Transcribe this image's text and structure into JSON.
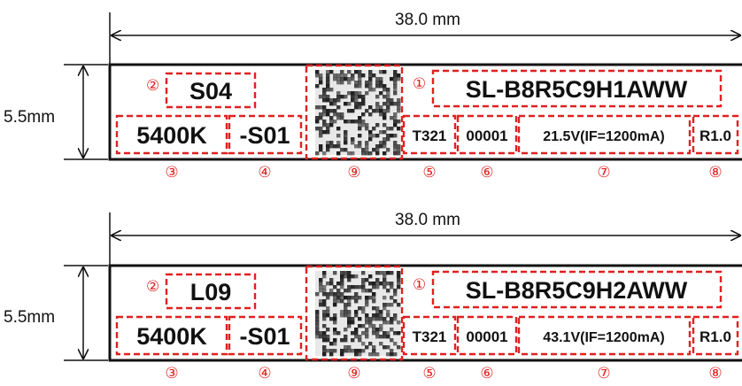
{
  "colors": {
    "annotation": "#e02020",
    "outline": "#111111",
    "qr_dark": "#1a1a1a",
    "qr_light": "#e8e8e8"
  },
  "labels": [
    {
      "width_dim": "38.0 mm",
      "height_dim": "5.5mm",
      "code_top": "S04",
      "part_number": "SL-B8R5C9H1AWW",
      "cct": "5400K",
      "suffix": "-S01",
      "code_t": "T321",
      "serial": "00001",
      "voltage": "21.5V(IF=1200mA)",
      "revision": "R1.0",
      "markers": {
        "part_number": "①",
        "code_top": "②",
        "cct": "③",
        "suffix": "④",
        "code_t": "⑤",
        "serial": "⑥",
        "voltage": "⑦",
        "revision": "⑧",
        "matrix": "⑨"
      }
    },
    {
      "width_dim": "38.0 mm",
      "height_dim": "5.5mm",
      "code_top": "L09",
      "part_number": "SL-B8R5C9H2AWW",
      "cct": "5400K",
      "suffix": "-S01",
      "code_t": "T321",
      "serial": "00001",
      "voltage": "43.1V(IF=1200mA)",
      "revision": "R1.0",
      "markers": {
        "part_number": "①",
        "code_top": "②",
        "cct": "③",
        "suffix": "④",
        "code_t": "⑤",
        "serial": "⑥",
        "voltage": "⑦",
        "revision": "⑧",
        "matrix": "⑨"
      }
    }
  ]
}
